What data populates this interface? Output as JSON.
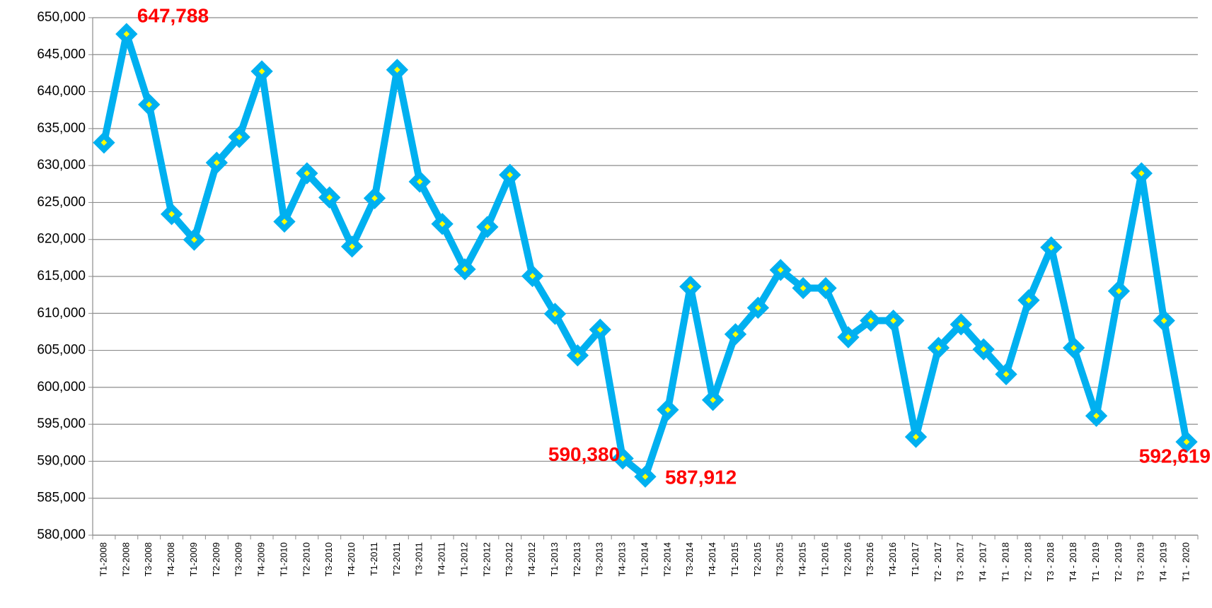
{
  "chart_data": {
    "type": "line",
    "categories": [
      "T1-2008",
      "T2-2008",
      "T3-2008",
      "T4-2008",
      "T1-2009",
      "T2-2009",
      "T3-2009",
      "T4-2009",
      "T1-2010",
      "T2-2010",
      "T3-2010",
      "T4-2010",
      "T1-2011",
      "T2-2011",
      "T3-2011",
      "T4-2011",
      "T1-2012",
      "T2-2012",
      "T3-2012",
      "T4-2012",
      "T1-2013",
      "T2-2013",
      "T3-2013",
      "T4-2013",
      "T1-2014",
      "T2-2014",
      "T3-2014",
      "T4-2014",
      "T1-2015",
      "T2-2015",
      "T3-2015",
      "T4-2015",
      "T1-2016",
      "T2-2016",
      "T3-2016",
      "T4-2016",
      "T1-2017",
      "T2 - 2017",
      "T3 - 2017",
      "T4 - 2017",
      "T1 - 2018",
      "T2 - 2018",
      "T3 - 2018",
      "T4 - 2018",
      "T1 - 2019",
      "T2 - 2019",
      "T3 - 2019",
      "T4 - 2019",
      "T1 - 2020"
    ],
    "values": [
      633100,
      647788,
      638250,
      623430,
      619960,
      630380,
      633850,
      642740,
      622410,
      628950,
      625680,
      619040,
      625580,
      642950,
      627820,
      622100,
      615970,
      621690,
      628740,
      615050,
      609940,
      604320,
      607800,
      590380,
      587912,
      596960,
      613620,
      598290,
      607180,
      610760,
      615870,
      613420,
      613420,
      606770,
      609020,
      609020,
      593290,
      605340,
      608510,
      605140,
      601770,
      611780,
      618930,
      605340,
      596140,
      613010,
      628950,
      609020,
      592619
    ],
    "value_labels": [
      null,
      "647,788",
      null,
      null,
      null,
      null,
      null,
      null,
      null,
      null,
      null,
      null,
      null,
      null,
      null,
      null,
      null,
      null,
      null,
      null,
      null,
      null,
      null,
      "590,380",
      "587,912",
      null,
      null,
      null,
      null,
      null,
      null,
      null,
      null,
      null,
      null,
      null,
      null,
      null,
      null,
      null,
      null,
      null,
      null,
      null,
      null,
      null,
      null,
      null,
      "592,619"
    ],
    "color": "#00b0f0",
    "marker_color": "#ffff00",
    "label_color": "#ff0000",
    "ylim": [
      580000,
      650000
    ],
    "yticks": [
      {
        "value": 580000,
        "label": "580,000"
      },
      {
        "value": 585000,
        "label": "585,000"
      },
      {
        "value": 590000,
        "label": "590,000"
      },
      {
        "value": 595000,
        "label": "595,000"
      },
      {
        "value": 600000,
        "label": "600,000"
      },
      {
        "value": 605000,
        "label": "605,000"
      },
      {
        "value": 610000,
        "label": "610,000"
      },
      {
        "value": 615000,
        "label": "615,000"
      },
      {
        "value": 620000,
        "label": "620,000"
      },
      {
        "value": 625000,
        "label": "625,000"
      },
      {
        "value": 630000,
        "label": "630,000"
      },
      {
        "value": 635000,
        "label": "635,000"
      },
      {
        "value": 640000,
        "label": "640,000"
      },
      {
        "value": 645000,
        "label": "645,000"
      },
      {
        "value": 650000,
        "label": "650,000"
      }
    ],
    "grid": true
  }
}
